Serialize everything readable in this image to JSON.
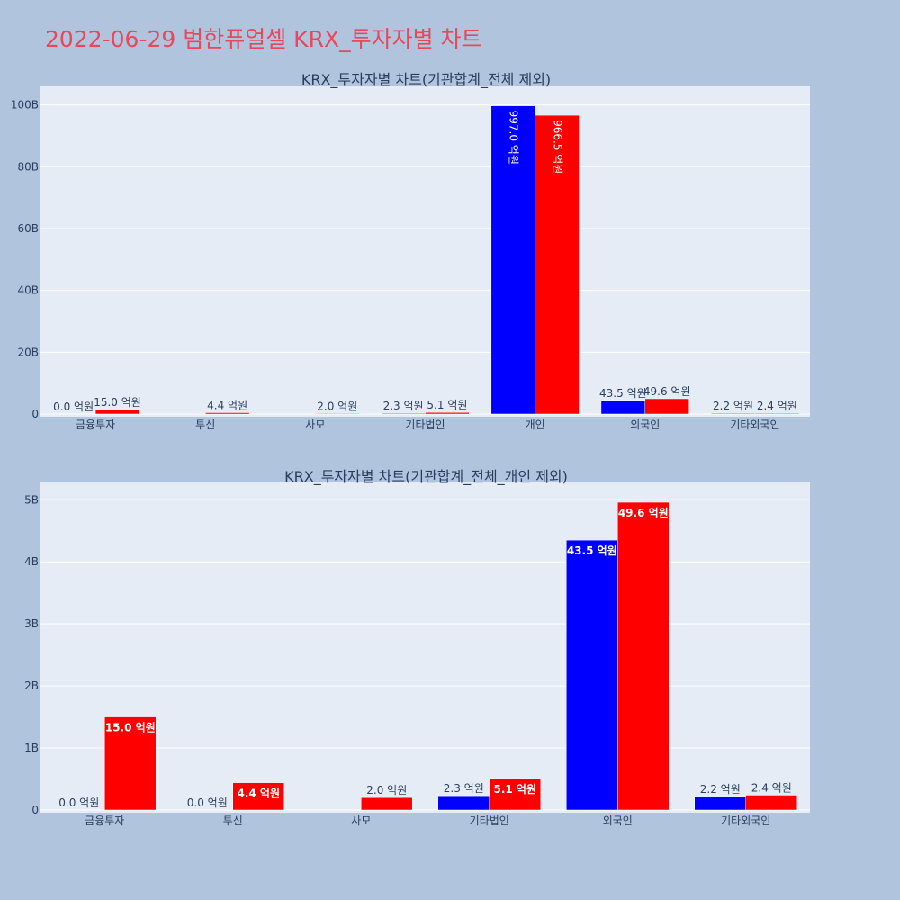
{
  "page": {
    "title": "2022-06-29 범한퓨얼셀 KRX_투자자별 차트",
    "title_color": "#e8475c",
    "background": "#b0c4de",
    "plot_background": "#e5ecf6"
  },
  "chart_data": [
    {
      "type": "bar",
      "title": "KRX_투자자별 차트(기관합계_전체 제외)",
      "categories": [
        "금융투자",
        "투신",
        "사모",
        "기타법인",
        "개인",
        "외국인",
        "기타외국인"
      ],
      "series": [
        {
          "color": "#0000ff",
          "values": [
            0.0,
            0.0,
            0.0,
            230000000,
            99700000000,
            4350000000,
            220000000
          ],
          "labels": [
            "0.0 억원",
            "",
            "",
            "2.3 억원",
            "997.0 억원",
            "43.5 억원",
            "2.2 억원"
          ]
        },
        {
          "color": "#ff0000",
          "values": [
            1500000000,
            440000000,
            200000000,
            510000000,
            96650000000,
            4960000000,
            240000000
          ],
          "labels": [
            "15.0 억원",
            "4.4 억원",
            "2.0 억원",
            "5.1 억원",
            "966.5 억원",
            "49.6 억원",
            "2.4 억원"
          ]
        }
      ],
      "ylim": [
        0,
        106000000000
      ],
      "yticks": [
        0,
        20000000000,
        40000000000,
        60000000000,
        80000000000,
        100000000000
      ],
      "ytick_labels": [
        "0",
        "20B",
        "40B",
        "60B",
        "80B",
        "100B"
      ],
      "grid": true,
      "legend": "none"
    },
    {
      "type": "bar",
      "title": "KRX_투자자별 차트(기관합계_전체_개인 제외)",
      "categories": [
        "금융투자",
        "투신",
        "사모",
        "기타법인",
        "외국인",
        "기타외국인"
      ],
      "series": [
        {
          "color": "#0000ff",
          "values": [
            0.0,
            0.0,
            0.0,
            230000000,
            4350000000,
            220000000
          ],
          "labels": [
            "0.0 억원",
            "0.0 억원",
            "",
            "2.3 억원",
            "43.5 억원",
            "2.2 억원"
          ]
        },
        {
          "color": "#ff0000",
          "values": [
            1500000000,
            440000000,
            200000000,
            510000000,
            4960000000,
            240000000
          ],
          "labels": [
            "15.0 억원",
            "4.4 억원",
            "2.0 억원",
            "5.1 억원",
            "49.6 억원",
            "2.4 억원"
          ]
        }
      ],
      "ylim": [
        0,
        5280000000
      ],
      "yticks": [
        0,
        1000000000,
        2000000000,
        3000000000,
        4000000000,
        5000000000
      ],
      "ytick_labels": [
        "0",
        "1B",
        "2B",
        "3B",
        "4B",
        "5B"
      ],
      "grid": true,
      "legend": "none"
    }
  ]
}
